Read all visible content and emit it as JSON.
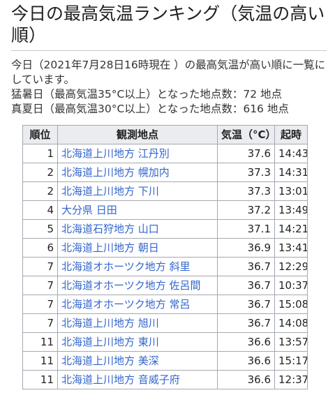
{
  "title": "今日の最高気温ランキング（気温の高い順）",
  "description": {
    "line1": "今日（2021年7月28日16時現在 ）の最高気温が高い順に一覧にしています。",
    "line2": "猛暑日（最高気温35°C以上）となった地点数：72 地点",
    "line3": "真夏日（最高気温30°C以上）となった地点数：616 地点"
  },
  "table": {
    "headers": {
      "rank": "順位",
      "place": "観測地点",
      "temp": "気温（°C）",
      "time": "起時"
    },
    "rows": [
      {
        "rank": "1",
        "place": "北海道上川地方 江丹別",
        "temp": "37.6",
        "time": "14:43"
      },
      {
        "rank": "2",
        "place": "北海道上川地方 幌加内",
        "temp": "37.3",
        "time": "14:31"
      },
      {
        "rank": "2",
        "place": "北海道上川地方 下川",
        "temp": "37.3",
        "time": "13:01"
      },
      {
        "rank": "4",
        "place": "大分県 日田",
        "temp": "37.2",
        "time": "13:49"
      },
      {
        "rank": "5",
        "place": "北海道石狩地方 山口",
        "temp": "37.1",
        "time": "14:21"
      },
      {
        "rank": "6",
        "place": "北海道上川地方 朝日",
        "temp": "36.9",
        "time": "13:41"
      },
      {
        "rank": "7",
        "place": "北海道オホーツク地方 斜里",
        "temp": "36.7",
        "time": "12:29"
      },
      {
        "rank": "7",
        "place": "北海道オホーツク地方 佐呂間",
        "temp": "36.7",
        "time": "10:37"
      },
      {
        "rank": "7",
        "place": "北海道オホーツク地方 常呂",
        "temp": "36.7",
        "time": "15:08"
      },
      {
        "rank": "7",
        "place": "北海道上川地方 旭川",
        "temp": "36.7",
        "time": "14:08"
      },
      {
        "rank": "11",
        "place": "北海道上川地方 東川",
        "temp": "36.6",
        "time": "13:57"
      },
      {
        "rank": "11",
        "place": "北海道上川地方 美深",
        "temp": "36.6",
        "time": "15:17"
      },
      {
        "rank": "11",
        "place": "北海道上川地方 音威子府",
        "temp": "36.6",
        "time": "12:37"
      }
    ]
  },
  "colors": {
    "link": "#3366cc",
    "header_bg": "#eaecf0",
    "border": "#a2a9b1"
  }
}
